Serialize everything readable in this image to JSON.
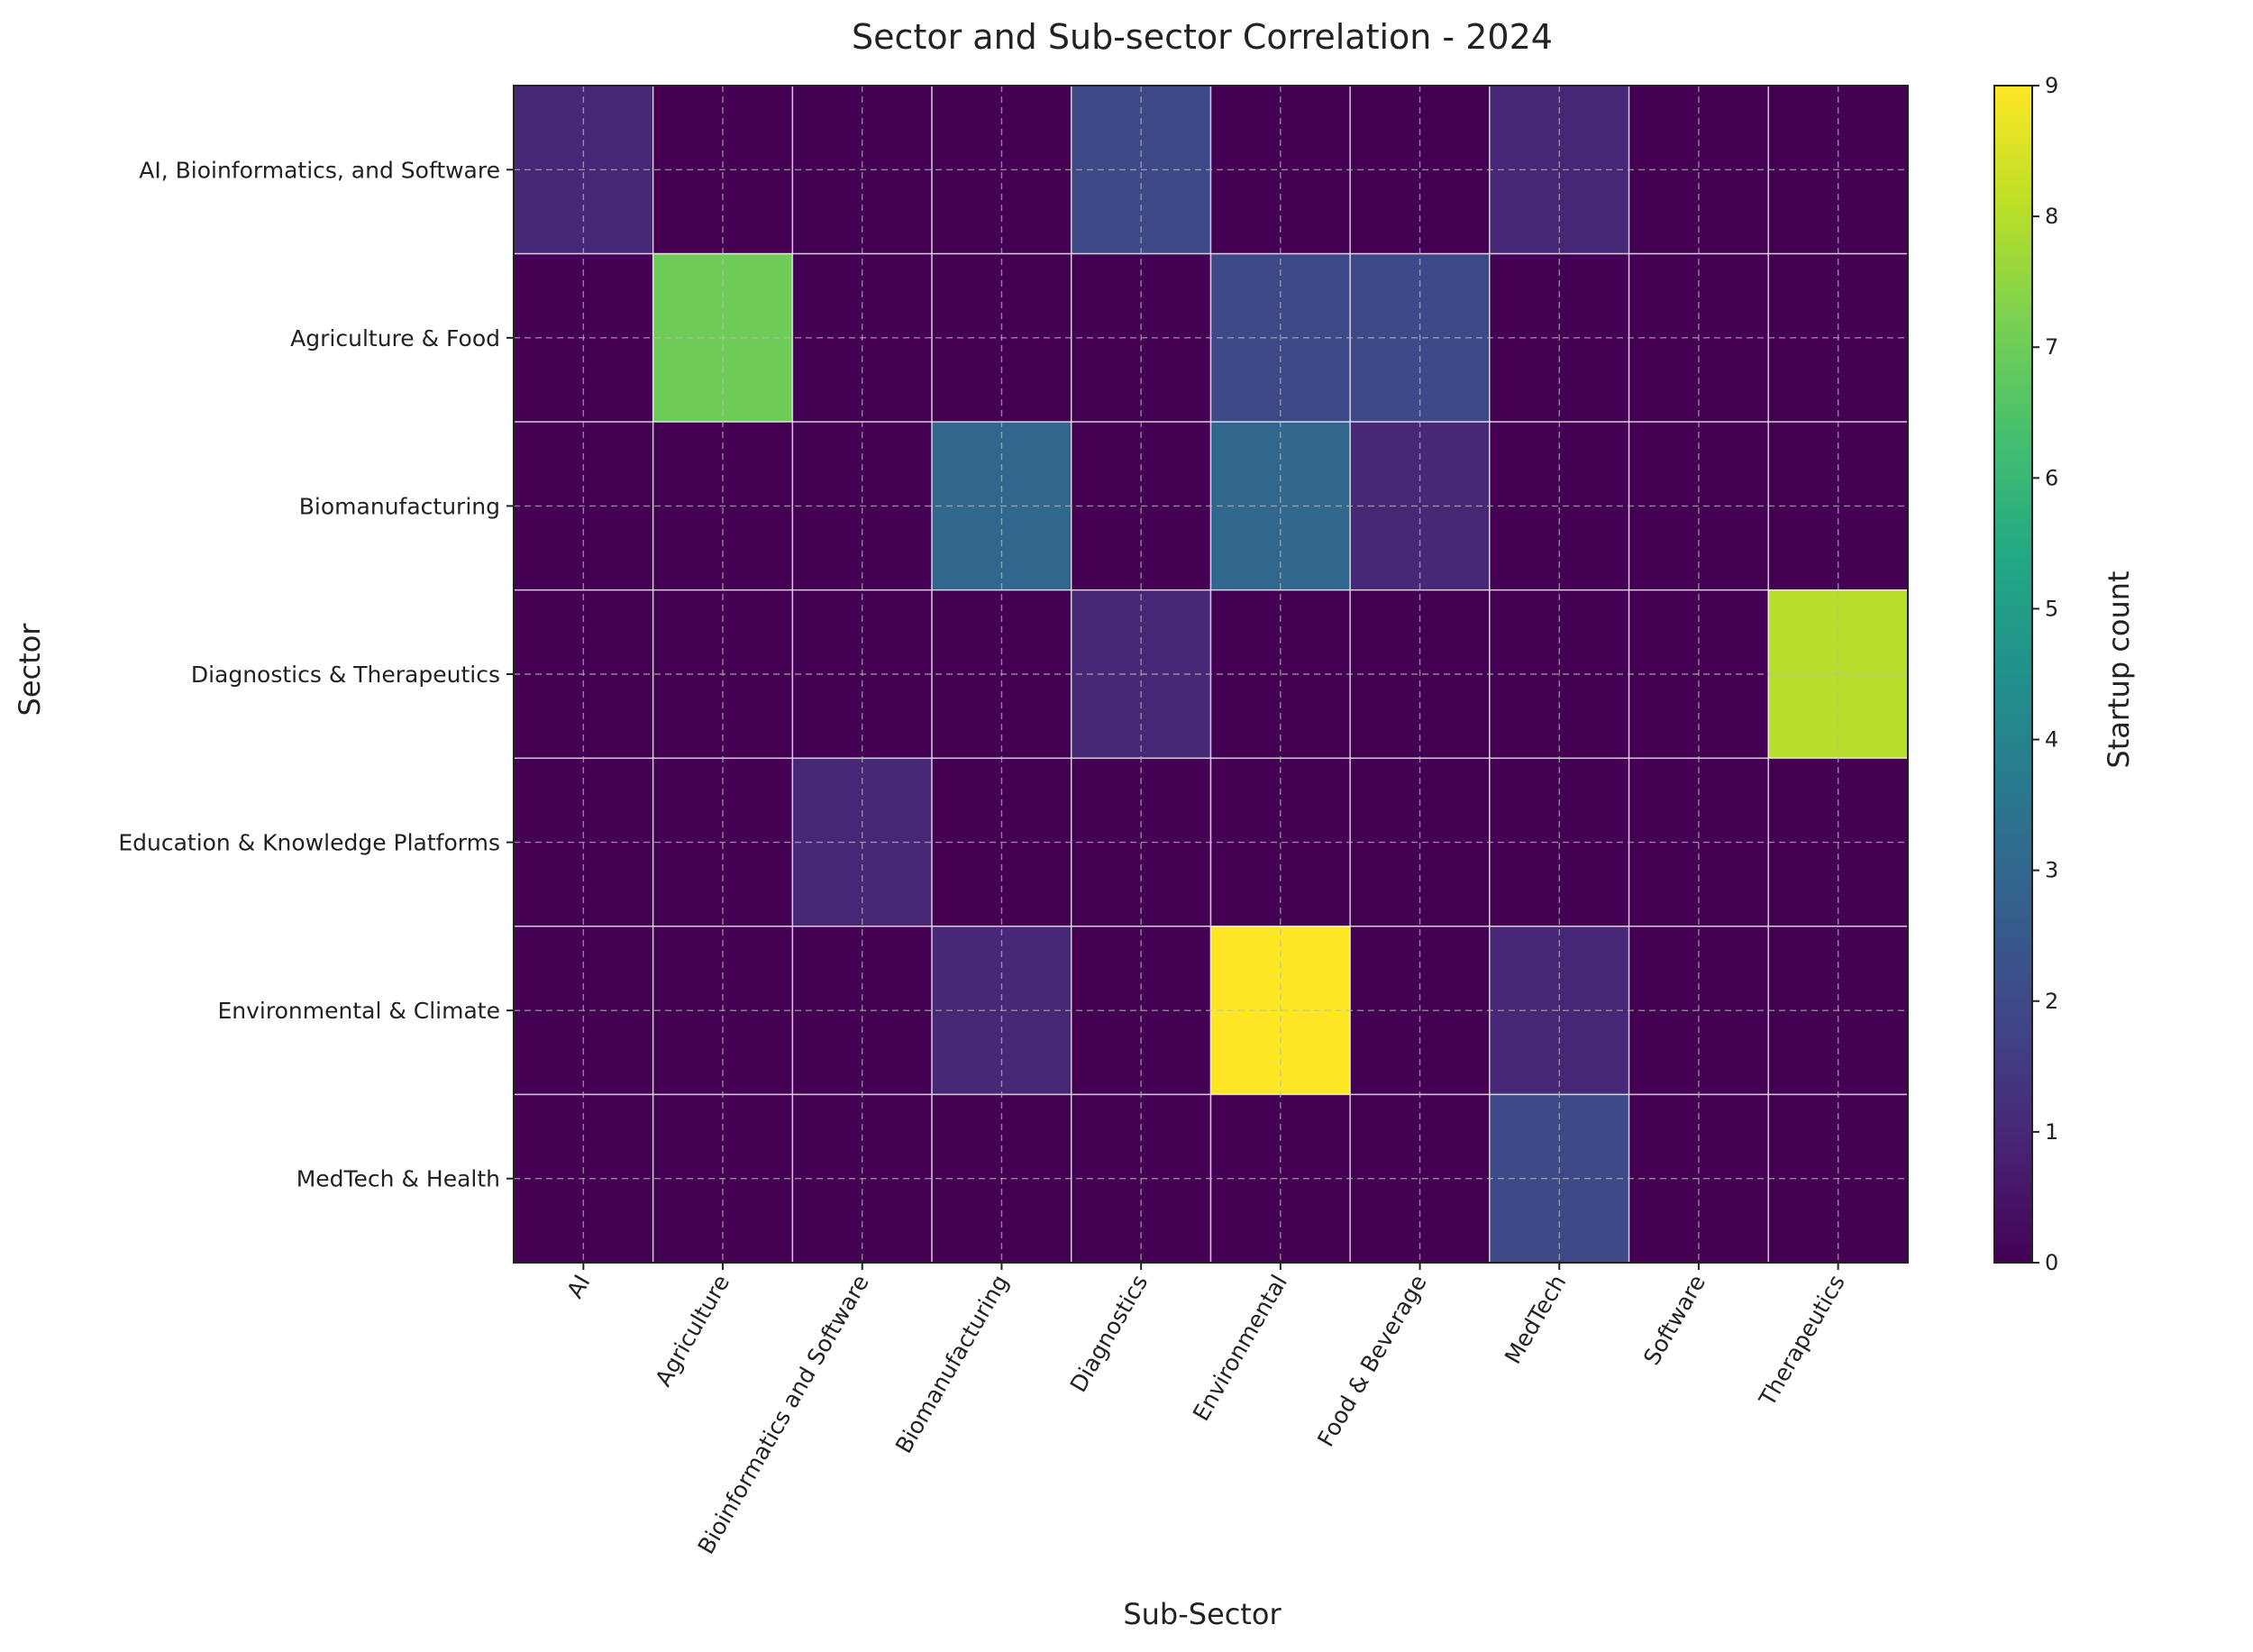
{
  "chart_data": {
    "type": "heatmap",
    "title": "Sector and Sub-sector Correlation - 2024",
    "xlabel": "Sub-Sector",
    "ylabel": "Sector",
    "x_categories": [
      "AI",
      "Agriculture",
      "Bioinformatics and Software",
      "Biomanufacturing",
      "Diagnostics",
      "Environmental",
      "Food & Beverage",
      "MedTech",
      "Software",
      "Therapeutics"
    ],
    "y_categories": [
      "AI, Bioinformatics, and Software",
      "Agriculture & Food",
      "Biomanufacturing",
      "Diagnostics & Therapeutics",
      "Education & Knowledge Platforms",
      "Environmental & Climate",
      "MedTech & Health"
    ],
    "values": [
      [
        1,
        0,
        0,
        0,
        2,
        0,
        0,
        1,
        0,
        0
      ],
      [
        0,
        7,
        0,
        0,
        0,
        2,
        2,
        0,
        0,
        0
      ],
      [
        0,
        0,
        0,
        3,
        0,
        3,
        1,
        0,
        0,
        0
      ],
      [
        0,
        0,
        0,
        0,
        1,
        0,
        0,
        0,
        0,
        8
      ],
      [
        0,
        0,
        1,
        0,
        0,
        0,
        0,
        0,
        0,
        0
      ],
      [
        0,
        0,
        0,
        1,
        0,
        9,
        0,
        1,
        0,
        0
      ],
      [
        0,
        0,
        0,
        0,
        0,
        0,
        0,
        2,
        0,
        0
      ]
    ],
    "colormap": "viridis",
    "vmin": 0,
    "vmax": 9,
    "colorbar": {
      "label": "Startup count",
      "ticks": [
        "0",
        "1",
        "2",
        "3",
        "4",
        "5",
        "6",
        "7",
        "8",
        "9"
      ]
    },
    "grid": true
  }
}
